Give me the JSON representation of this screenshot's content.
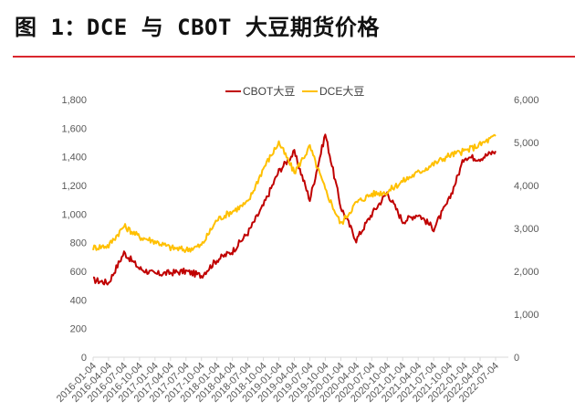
{
  "header": {
    "title": "图 1：DCE 与 CBOT 大豆期货价格",
    "rule_color": "#d9272e"
  },
  "chart_data": {
    "type": "line",
    "title": "图 1：DCE 与 CBOT 大豆期货价格",
    "xlabel": "",
    "ylabel_left": "",
    "ylabel_right": "",
    "legend_position": "top",
    "grid": false,
    "x": [
      "2016-01-04",
      "2016-04-04",
      "2016-07-04",
      "2016-10-04",
      "2017-01-04",
      "2017-04-04",
      "2017-07-04",
      "2017-10-04",
      "2018-01-04",
      "2018-04-04",
      "2018-07-04",
      "2018-10-04",
      "2019-01-04",
      "2019-04-04",
      "2019-07-04",
      "2019-10-04",
      "2020-01-04",
      "2020-04-04",
      "2020-07-04",
      "2020-10-04",
      "2021-01-04",
      "2021-04-04",
      "2021-07-04",
      "2021-10-04",
      "2022-01-04",
      "2022-04-04",
      "2022-07-04"
    ],
    "series": [
      {
        "name": "CBOT大豆",
        "axis": "left",
        "color": "#c00000",
        "values": [
          540,
          520,
          730,
          620,
          580,
          590,
          600,
          570,
          680,
          740,
          870,
          1060,
          1300,
          1430,
          1100,
          1560,
          1050,
          820,
          1000,
          1150,
          950,
          1000,
          900,
          1100,
          1400,
          1390,
          1440
        ]
      },
      {
        "name": "DCE大豆",
        "axis": "right",
        "color": "#ffc000",
        "values": [
          2550,
          2600,
          3050,
          2800,
          2700,
          2550,
          2500,
          2600,
          3200,
          3400,
          3600,
          4400,
          5000,
          4300,
          4900,
          3900,
          3100,
          3600,
          3800,
          3850,
          4100,
          4300,
          4500,
          4700,
          4800,
          4950,
          5150
        ]
      }
    ],
    "ylim_left": [
      0,
      1800
    ],
    "ylim_right": [
      0,
      6000
    ],
    "yticks_left": [
      "0",
      "200",
      "400",
      "600",
      "800",
      "1,000",
      "1,200",
      "1,400",
      "1,600",
      "1,800"
    ],
    "yticks_right": [
      "0",
      "1,000",
      "2,000",
      "3,000",
      "4,000",
      "5,000",
      "6,000"
    ]
  },
  "legend": {
    "items": [
      {
        "label": "CBOT大豆",
        "color": "#c00000"
      },
      {
        "label": "DCE大豆",
        "color": "#ffc000"
      }
    ]
  }
}
